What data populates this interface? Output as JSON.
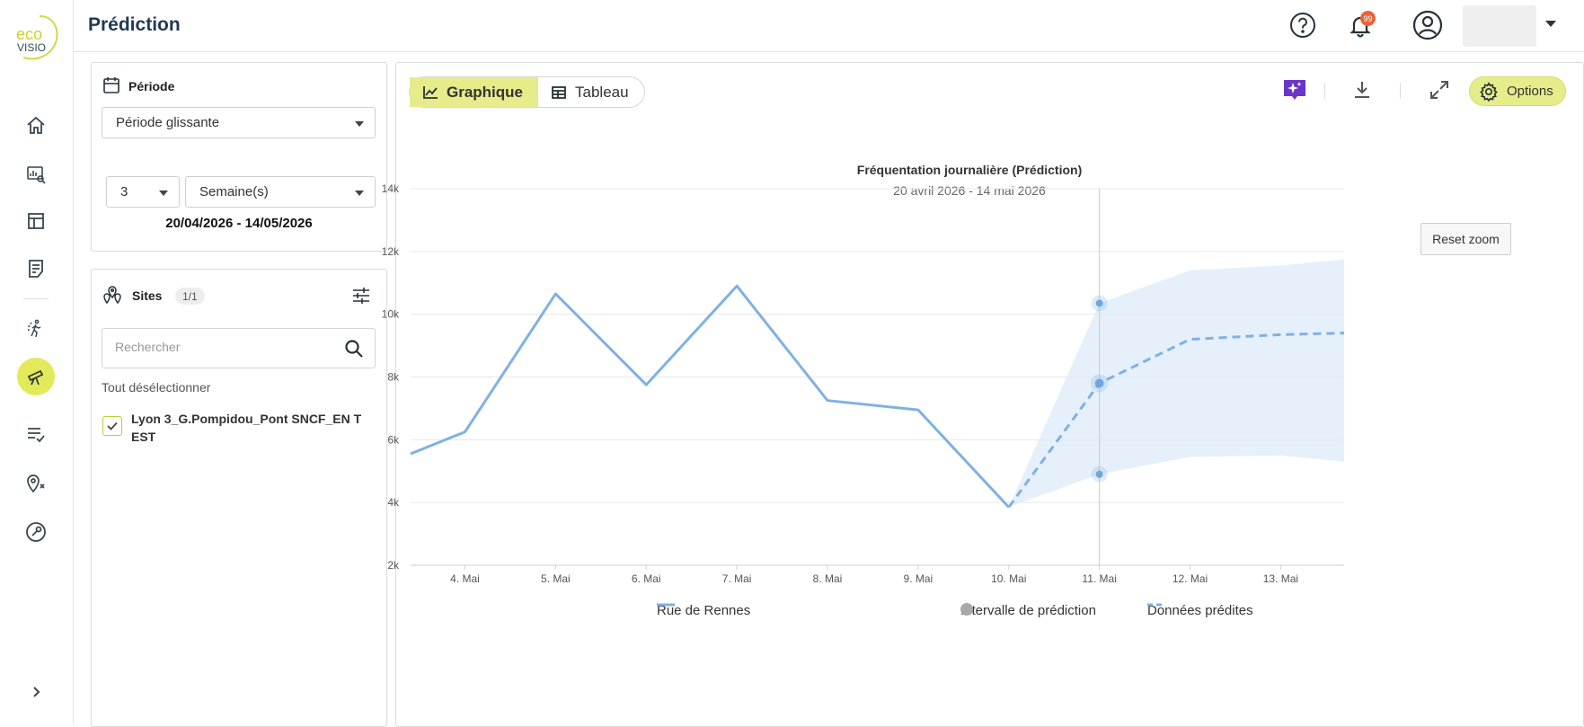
{
  "app": {
    "logo_line1": "eco",
    "logo_line2": "VISIO"
  },
  "header": {
    "title": "Prédiction",
    "notification_count": "99"
  },
  "rail": {
    "items": [
      {
        "name": "home-icon"
      },
      {
        "name": "analysis-icon"
      },
      {
        "name": "dashboard-icon"
      },
      {
        "name": "reports-icon"
      },
      {
        "name": "pedestrian-icon"
      },
      {
        "name": "telescope-icon",
        "active": true
      },
      {
        "name": "checklist-icon"
      },
      {
        "name": "map-pin-icon"
      },
      {
        "name": "wrench-icon"
      }
    ],
    "expand": "chevron-right-icon"
  },
  "periode": {
    "title": "Période",
    "mode": "Période glissante",
    "count": "3",
    "unit": "Semaine(s)",
    "range": "20/04/2026 - 14/05/2026"
  },
  "sites": {
    "title": "Sites",
    "count": "1/1",
    "search_placeholder": "Rechercher",
    "deselect_all": "Tout désélectionner",
    "items": [
      {
        "label": "Lyon 3_G.Pompidou_Pont SNCF_EN T EST",
        "checked": true
      }
    ]
  },
  "toolbar": {
    "tab_chart": "Graphique",
    "tab_table": "Tableau",
    "options": "Options"
  },
  "chart_data": {
    "type": "line",
    "title": "Fréquentation journalière (Prédiction)",
    "subtitle": "20 avril 2026 - 14 mai 2026",
    "x_ticks": [
      "4. Mai",
      "5. Mai",
      "6. Mai",
      "7. Mai",
      "8. Mai",
      "9. Mai",
      "10. Mai",
      "11. Mai",
      "12. Mai",
      "13. Mai"
    ],
    "y_ticks": [
      "2k",
      "4k",
      "6k",
      "8k",
      "10k",
      "12k",
      "14k"
    ],
    "ylim": [
      2000,
      14000
    ],
    "xlim": [
      3.4,
      13.7
    ],
    "reset_zoom": "Reset zoom",
    "series": [
      {
        "name": "Rue de Rennes",
        "style": "solid",
        "color": "#7fb1e3",
        "points": [
          [
            3.4,
            5550
          ],
          [
            4,
            6250
          ],
          [
            5,
            10650
          ],
          [
            6,
            7750
          ],
          [
            7,
            10900
          ],
          [
            8,
            7250
          ],
          [
            9,
            6950
          ],
          [
            10,
            3850
          ]
        ]
      },
      {
        "name": "Données prédites",
        "style": "dashed",
        "color": "#7fb1e3",
        "points": [
          [
            10,
            3850
          ],
          [
            11,
            7800
          ],
          [
            12,
            9200
          ],
          [
            13,
            9350
          ],
          [
            13.7,
            9400
          ]
        ]
      }
    ],
    "interval": {
      "name": "Intervalle de prédiction",
      "color": "#dbe9f8",
      "points": [
        [
          10,
          3850,
          3850
        ],
        [
          11,
          4900,
          10350
        ],
        [
          12,
          5450,
          11400
        ],
        [
          13,
          5500,
          11550
        ],
        [
          13.7,
          5300,
          11750
        ]
      ]
    },
    "crosshair_x": 11,
    "legend_position": "bottom"
  }
}
